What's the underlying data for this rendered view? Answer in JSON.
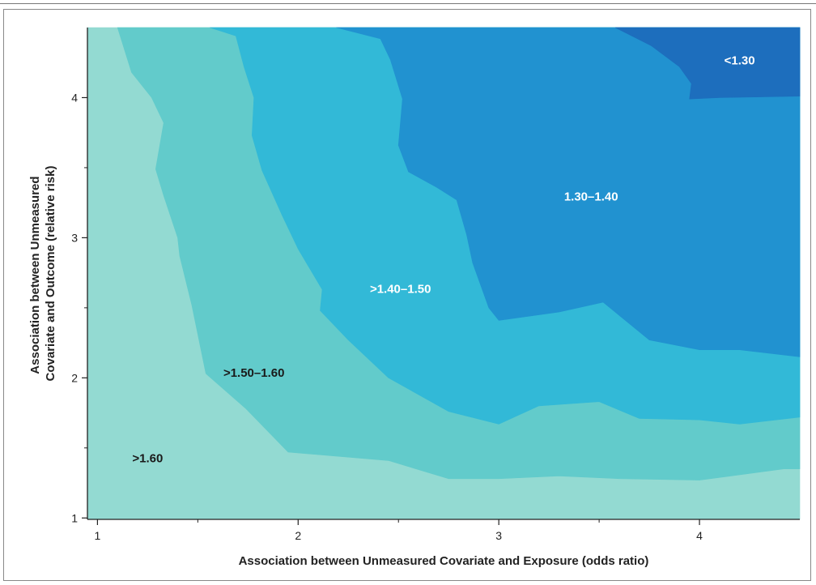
{
  "chart_data": {
    "type": "contour",
    "xlabel": "Association between Unmeasured Covariate and Exposure (odds ratio)",
    "ylabel_lines": [
      "Association between Unmeasured",
      "Covariate and Outcome (relative risk)"
    ],
    "xlim": [
      0.95,
      4.5
    ],
    "ylim": [
      0.99,
      4.5
    ],
    "x_ticks": [
      1,
      2,
      3,
      4
    ],
    "y_ticks": [
      1,
      2,
      3,
      4
    ],
    "x_tick_labels": [
      "1",
      "2",
      "3",
      "4"
    ],
    "y_tick_labels": [
      "1",
      "2",
      "3",
      "4"
    ],
    "x_minor_ticks": [
      1.5,
      2.5,
      3.5
    ],
    "y_minor_ticks": [
      1.5,
      2.5,
      3.5
    ],
    "regions": [
      {
        "label": ">1.60",
        "color": "#93dad2",
        "label_color": "#1a1a1a",
        "label_at": [
          1.25,
          1.42
        ],
        "boundary": [
          [
            0.95,
            0.99
          ],
          [
            4.5,
            0.99
          ],
          [
            4.5,
            4.5
          ],
          [
            0.95,
            4.5
          ]
        ]
      },
      {
        "label": ">1.50–1.60",
        "color": "#62cbcb",
        "label_color": "#1a1a1a",
        "label_at": [
          1.78,
          2.03
        ],
        "boundary": [
          [
            1.1,
            4.5
          ],
          [
            1.17,
            4.18
          ],
          [
            1.27,
            4.0
          ],
          [
            1.33,
            3.82
          ],
          [
            1.29,
            3.49
          ],
          [
            1.33,
            3.3
          ],
          [
            1.4,
            3.0
          ],
          [
            1.41,
            2.87
          ],
          [
            1.47,
            2.52
          ],
          [
            1.54,
            2.03
          ],
          [
            1.74,
            1.78
          ],
          [
            1.95,
            1.47
          ],
          [
            2.45,
            1.41
          ],
          [
            2.75,
            1.28
          ],
          [
            3.0,
            1.28
          ],
          [
            3.3,
            1.3
          ],
          [
            3.6,
            1.28
          ],
          [
            4.0,
            1.27
          ],
          [
            4.42,
            1.35
          ],
          [
            4.5,
            1.35
          ],
          [
            4.5,
            4.5
          ]
        ]
      },
      {
        "label": ">1.40–1.50",
        "color": "#32b9d7",
        "label_color": "#ffffff",
        "label_at": [
          2.51,
          2.63
        ],
        "boundary": [
          [
            1.56,
            4.5
          ],
          [
            1.69,
            4.44
          ],
          [
            1.73,
            4.22
          ],
          [
            1.78,
            4.0
          ],
          [
            1.77,
            3.73
          ],
          [
            1.82,
            3.48
          ],
          [
            1.92,
            3.16
          ],
          [
            2.0,
            2.92
          ],
          [
            2.12,
            2.63
          ],
          [
            2.11,
            2.48
          ],
          [
            2.25,
            2.27
          ],
          [
            2.45,
            2.0
          ],
          [
            2.75,
            1.76
          ],
          [
            3.0,
            1.67
          ],
          [
            3.2,
            1.8
          ],
          [
            3.5,
            1.83
          ],
          [
            3.7,
            1.71
          ],
          [
            4.0,
            1.7
          ],
          [
            4.2,
            1.67
          ],
          [
            4.5,
            1.72
          ],
          [
            4.5,
            4.5
          ]
        ]
      },
      {
        "label": "1.30–1.40",
        "color": "#2192d0",
        "label_color": "#ffffff",
        "label_at": [
          3.46,
          3.29
        ],
        "boundary": [
          [
            2.19,
            4.5
          ],
          [
            2.41,
            4.42
          ],
          [
            2.46,
            4.27
          ],
          [
            2.52,
            3.99
          ],
          [
            2.5,
            3.66
          ],
          [
            2.55,
            3.47
          ],
          [
            2.69,
            3.36
          ],
          [
            2.79,
            3.27
          ],
          [
            2.84,
            3.02
          ],
          [
            2.87,
            2.82
          ],
          [
            2.95,
            2.5
          ],
          [
            3.0,
            2.41
          ],
          [
            3.3,
            2.47
          ],
          [
            3.52,
            2.54
          ],
          [
            3.75,
            2.27
          ],
          [
            4.0,
            2.2
          ],
          [
            4.2,
            2.2
          ],
          [
            4.5,
            2.15
          ],
          [
            4.5,
            4.5
          ]
        ]
      },
      {
        "label": "<1.30",
        "color": "#1d6ebd",
        "label_color": "#ffffff",
        "label_at": [
          4.2,
          4.26
        ],
        "boundary": [
          [
            3.58,
            4.5
          ],
          [
            3.76,
            4.37
          ],
          [
            3.9,
            4.22
          ],
          [
            3.96,
            4.1
          ],
          [
            3.95,
            3.99
          ],
          [
            4.1,
            4.0
          ],
          [
            4.5,
            4.01
          ],
          [
            4.5,
            4.5
          ]
        ]
      }
    ]
  }
}
